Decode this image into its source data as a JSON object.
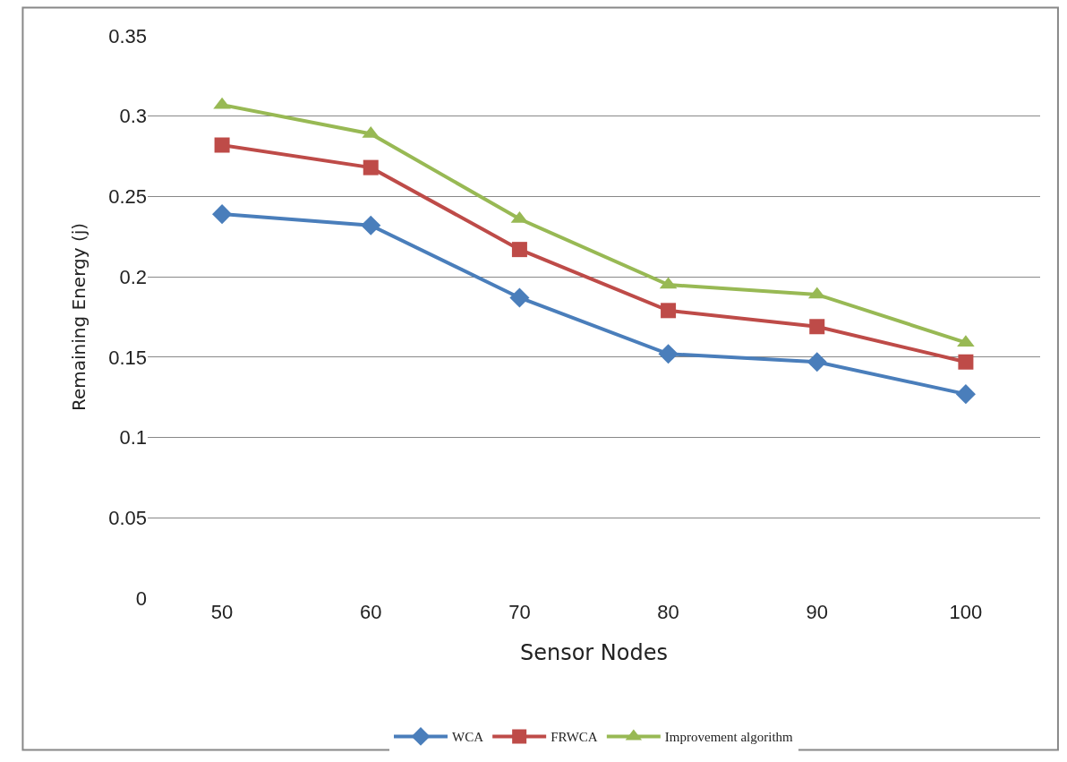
{
  "chart_data": {
    "type": "line",
    "xlabel": "Sensor Nodes",
    "ylabel": "Remaining Energy (j)",
    "categories": [
      "50",
      "60",
      "70",
      "80",
      "90",
      "100"
    ],
    "series": [
      {
        "name": "WCA",
        "color": "#4a7ebb",
        "marker": "diamond",
        "values": [
          0.239,
          0.232,
          0.187,
          0.152,
          0.147,
          0.127
        ]
      },
      {
        "name": "FRWCA",
        "color": "#be4b48",
        "marker": "square",
        "values": [
          0.282,
          0.268,
          0.217,
          0.179,
          0.169,
          0.147
        ]
      },
      {
        "name": "Improvement algorithm",
        "color": "#98b954",
        "marker": "triangle",
        "values": [
          0.307,
          0.289,
          0.236,
          0.195,
          0.189,
          0.159
        ]
      }
    ],
    "ylim": [
      0,
      0.35
    ],
    "yticks": [
      {
        "value": 0,
        "label": "0"
      },
      0.05,
      0.1,
      0.15,
      0.2,
      0.25,
      0.3,
      0.35
    ],
    "grid": "y",
    "legend": "bottom"
  }
}
